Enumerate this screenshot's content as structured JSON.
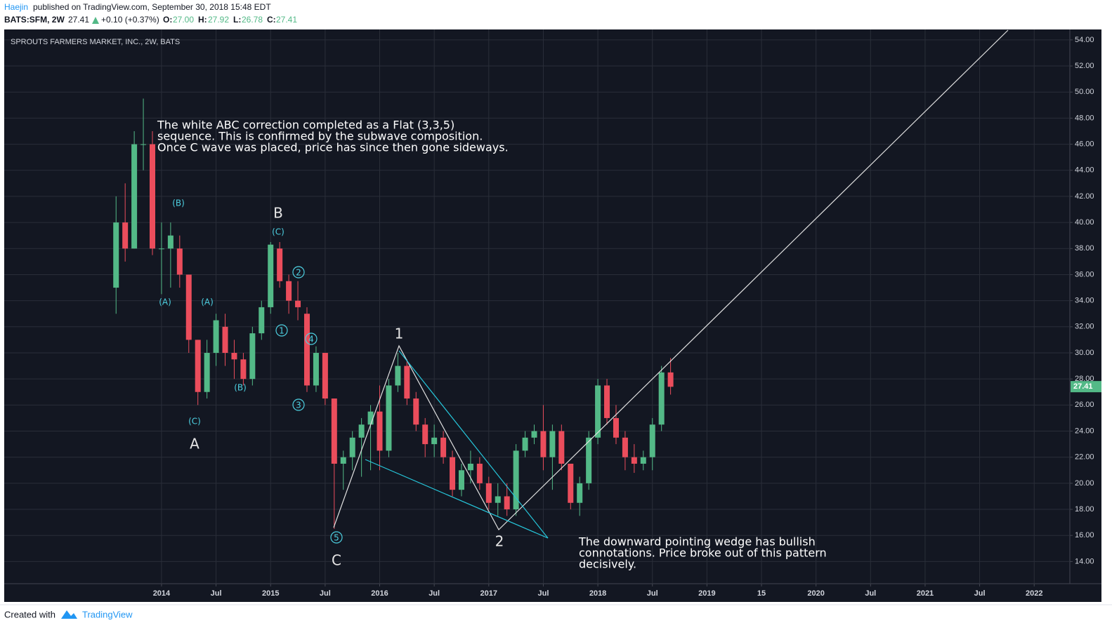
{
  "header": {
    "author": "Haejin",
    "published": "published on TradingView.com, September 30, 2018 15:48 EDT",
    "symbol": "BATS:SFM, 2W",
    "last": "27.41",
    "change": "+0.10 (+0.37%)",
    "open_label": "O:",
    "open": "27.00",
    "high_label": "H:",
    "high": "27.92",
    "low_label": "L:",
    "low": "26.78",
    "close_label": "C:",
    "close": "27.41"
  },
  "footer": {
    "created_with": "Created with",
    "brand": "TradingView"
  },
  "chart_data": {
    "type": "candlestick",
    "title": "SPROUTS FARMERS MARKET, INC., 2W, BATS",
    "up_color": "#53b987",
    "down_color": "#eb4d5c",
    "grid": true,
    "last_price": 27.41,
    "xlim": [
      "2012-07",
      "2022-05"
    ],
    "ylim": [
      12.3,
      54.8
    ],
    "xticks": [
      {
        "value": "2014-01",
        "label": "2014"
      },
      {
        "value": "2014-07",
        "label": "Jul"
      },
      {
        "value": "2015-01",
        "label": "2015"
      },
      {
        "value": "2015-07",
        "label": "Jul"
      },
      {
        "value": "2016-01",
        "label": "2016"
      },
      {
        "value": "2016-07",
        "label": "Jul"
      },
      {
        "value": "2017-01",
        "label": "2017"
      },
      {
        "value": "2017-07",
        "label": "Jul"
      },
      {
        "value": "2018-01",
        "label": "2018"
      },
      {
        "value": "2018-07",
        "label": "Jul"
      },
      {
        "value": "2019-01",
        "label": "2019"
      },
      {
        "value": "2019-07",
        "label": "15"
      },
      {
        "value": "2020-01",
        "label": "2020"
      },
      {
        "value": "2020-07",
        "label": "Jul"
      },
      {
        "value": "2021-01",
        "label": "2021"
      },
      {
        "value": "2021-07",
        "label": "Jul"
      },
      {
        "value": "2022-01",
        "label": "2022"
      }
    ],
    "yticks": [
      {
        "value": 14,
        "label": "14.00"
      },
      {
        "value": 16,
        "label": "16.00"
      },
      {
        "value": 18,
        "label": "18.00"
      },
      {
        "value": 20,
        "label": "20.00"
      },
      {
        "value": 22,
        "label": "22.00"
      },
      {
        "value": 24,
        "label": "24.00"
      },
      {
        "value": 26,
        "label": "26.00"
      },
      {
        "value": 28,
        "label": "28.00"
      },
      {
        "value": 30,
        "label": "30.00"
      },
      {
        "value": 32,
        "label": "32.00"
      },
      {
        "value": 34,
        "label": "34.00"
      },
      {
        "value": 36,
        "label": "36.00"
      },
      {
        "value": 38,
        "label": "38.00"
      },
      {
        "value": 40,
        "label": "40.00"
      },
      {
        "value": 42,
        "label": "42.00"
      },
      {
        "value": 44,
        "label": "44.00"
      },
      {
        "value": 46,
        "label": "46.00"
      },
      {
        "value": 48,
        "label": "48.00"
      },
      {
        "value": 50,
        "label": "50.00"
      },
      {
        "value": 52,
        "label": "52.00"
      },
      {
        "value": 54,
        "label": "54.00"
      }
    ],
    "x": [
      "2013-08",
      "2013-09",
      "2013-10",
      "2013-11",
      "2013-12",
      "2014-01",
      "2014-02",
      "2014-03",
      "2014-04",
      "2014-05",
      "2014-06",
      "2014-07",
      "2014-08",
      "2014-09",
      "2014-10",
      "2014-11",
      "2014-12",
      "2015-01",
      "2015-02",
      "2015-03",
      "2015-04",
      "2015-05",
      "2015-06",
      "2015-07",
      "2015-08",
      "2015-09",
      "2015-10",
      "2015-11",
      "2015-12",
      "2016-01",
      "2016-02",
      "2016-03",
      "2016-04",
      "2016-05",
      "2016-06",
      "2016-07",
      "2016-08",
      "2016-09",
      "2016-10",
      "2016-11",
      "2016-12",
      "2017-01",
      "2017-02",
      "2017-03",
      "2017-04",
      "2017-05",
      "2017-06",
      "2017-07",
      "2017-08",
      "2017-09",
      "2017-10",
      "2017-11",
      "2017-12",
      "2018-01",
      "2018-02",
      "2018-03",
      "2018-04",
      "2018-05",
      "2018-06",
      "2018-07",
      "2018-08",
      "2018-09"
    ],
    "open": [
      35,
      40,
      38,
      46,
      46,
      38,
      38,
      38,
      36,
      31,
      27,
      30,
      32,
      30,
      29.5,
      28,
      31.5,
      33.5,
      38,
      35.5,
      34,
      33,
      27.5,
      30,
      26.5,
      21.5,
      22,
      23.5,
      24.5,
      25.5,
      22.5,
      27.5,
      29,
      26.5,
      24.5,
      23,
      23.5,
      22,
      19.5,
      21,
      21.5,
      20,
      18.5,
      19,
      18,
      22.5,
      23.5,
      24,
      22,
      24,
      21.5,
      18.5,
      20,
      23.5,
      27.5,
      25,
      23.5,
      22,
      21.5,
      22,
      24.5,
      28.5
    ],
    "high": [
      42,
      43,
      47,
      49.5,
      47,
      40,
      40,
      39,
      36,
      31,
      31,
      33,
      33,
      31,
      30,
      32,
      34,
      38.5,
      38.5,
      36,
      35.5,
      33.5,
      30.5,
      30,
      26.5,
      22.5,
      24,
      25,
      26,
      27.5,
      28,
      30,
      29.5,
      27,
      25,
      24.5,
      24,
      22.5,
      21.5,
      22.5,
      22,
      20.5,
      20,
      20,
      23,
      24,
      24.5,
      26,
      24.5,
      24.5,
      21.5,
      20.5,
      24,
      28,
      28,
      26,
      24,
      23,
      22.5,
      25,
      29,
      29.6
    ],
    "low": [
      33,
      37,
      38,
      44,
      37.5,
      34.5,
      35,
      35,
      30,
      26,
      26.5,
      29,
      29,
      28,
      27.5,
      27.5,
      31,
      33,
      35,
      33,
      32.5,
      27,
      27,
      26,
      16.5,
      19.5,
      21,
      20.5,
      21,
      21,
      22,
      27,
      26,
      24,
      22,
      22,
      21.5,
      19,
      19,
      20,
      19.5,
      18,
      17.5,
      17.5,
      17.5,
      22,
      23,
      21,
      19.5,
      21,
      18,
      17.5,
      19.5,
      23,
      24.5,
      23,
      21,
      20.8,
      21,
      21,
      24,
      26.8
    ],
    "close": [
      40,
      38,
      46,
      46,
      38,
      38,
      39,
      36,
      31,
      27,
      30,
      32.5,
      30,
      29.5,
      28,
      31.5,
      33.5,
      38.3,
      35.5,
      34,
      33.5,
      27.5,
      30,
      26.5,
      21.5,
      22,
      23.5,
      24.5,
      25.5,
      22.5,
      27.5,
      29,
      26.5,
      24.5,
      23,
      23.5,
      22,
      19.5,
      21,
      21.5,
      20,
      18.5,
      19,
      18,
      22.5,
      23.5,
      24,
      22,
      24,
      21.5,
      18.5,
      20,
      23.5,
      27.5,
      25,
      23.5,
      22,
      21.5,
      22,
      24.5,
      28.5,
      27.4
    ],
    "wave_labels": [
      "(B)",
      "B",
      "(C)",
      "2",
      "1",
      "4",
      "3",
      "5",
      "(A)",
      "(A)",
      "(B)",
      "(C)",
      "A",
      "1",
      "2",
      "C"
    ],
    "notes": [
      [
        "The white ABC correction completed as a Flat (3,3,5)",
        "sequence. This is confirmed by the subwave composition.",
        "Once C wave was placed, price has since then gone sideways."
      ],
      [
        "The downward pointing wedge has bullish",
        "connotations. Price broke out of this pattern",
        "decisively."
      ]
    ]
  }
}
